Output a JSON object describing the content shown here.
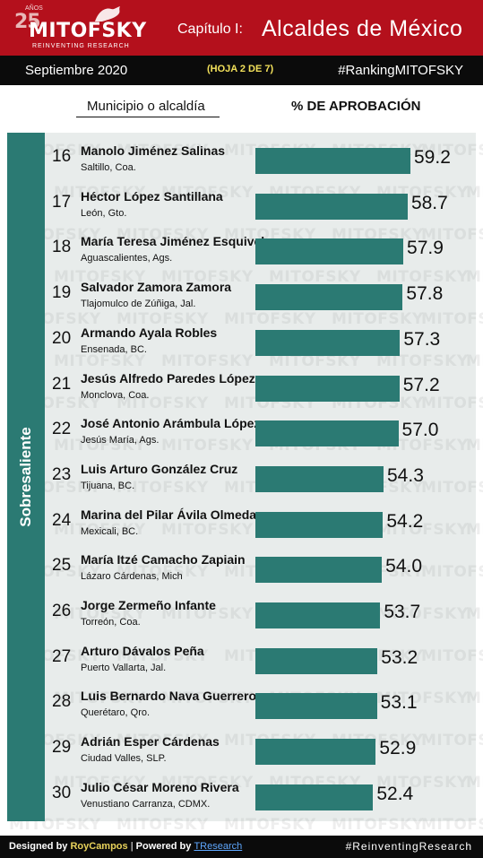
{
  "header": {
    "logo_years": "25",
    "logo_years_caption": "AÑOS",
    "brand": "MITOFSKY",
    "tagline": "REINVENTING RESEARCH",
    "chapter": "Capítulo I:",
    "title": "Alcaldes de México"
  },
  "subheader": {
    "date": "Septiembre 2020",
    "sheet": "(HOJA 2 DE 7)",
    "hashtag": "#RankingMITOFSKY"
  },
  "columns": {
    "municipality": "Municipio o alcaldía",
    "approval": "% DE APROBACIÓN"
  },
  "category": "Sobresaliente",
  "watermark": "MITOFSKY",
  "colors": {
    "brand_red": "#b4101c",
    "bar_teal": "#2b7a73",
    "panel_bg": "#e8eceb"
  },
  "chart_data": {
    "type": "bar",
    "orientation": "horizontal",
    "title": "Alcaldes de México",
    "value_label": "% DE APROBACIÓN",
    "rows": [
      {
        "rank": "16",
        "name": "Manolo Jiménez Salinas",
        "place": "Saltillo, Coa.",
        "value": 59.2,
        "label": "59.2"
      },
      {
        "rank": "17",
        "name": "Héctor López Santillana",
        "place": "León, Gto.",
        "value": 58.7,
        "label": "58.7"
      },
      {
        "rank": "18",
        "name": "María Teresa Jiménez Esquivel",
        "place": "Aguascalientes, Ags.",
        "value": 57.9,
        "label": "57.9"
      },
      {
        "rank": "19",
        "name": "Salvador Zamora Zamora",
        "place": "Tlajomulco de Zúñiga, Jal.",
        "value": 57.8,
        "label": "57.8"
      },
      {
        "rank": "20",
        "name": "Armando Ayala Robles",
        "place": "Ensenada, BC.",
        "value": 57.3,
        "label": "57.3"
      },
      {
        "rank": "21",
        "name": "Jesús Alfredo Paredes López",
        "place": "Monclova, Coa.",
        "value": 57.2,
        "label": "57.2"
      },
      {
        "rank": "22",
        "name": "José Antonio Arámbula López",
        "place": "Jesús María, Ags.",
        "value": 57.0,
        "label": "57.0"
      },
      {
        "rank": "23",
        "name": "Luis Arturo González Cruz",
        "place": "Tijuana, BC.",
        "value": 54.3,
        "label": "54.3"
      },
      {
        "rank": "24",
        "name": "Marina del Pilar Ávila Olmeda",
        "place": "Mexicali, BC.",
        "value": 54.2,
        "label": "54.2"
      },
      {
        "rank": "25",
        "name": "María Itzé Camacho Zapiain",
        "place": "Lázaro Cárdenas, Mich",
        "value": 54.0,
        "label": "54.0"
      },
      {
        "rank": "26",
        "name": "Jorge Zermeño Infante",
        "place": "Torreón, Coa.",
        "value": 53.7,
        "label": "53.7"
      },
      {
        "rank": "27",
        "name": "Arturo Dávalos Peña",
        "place": "Puerto Vallarta, Jal.",
        "value": 53.2,
        "label": "53.2"
      },
      {
        "rank": "28",
        "name": "Luis Bernardo Nava Guerrero",
        "place": "Querétaro, Qro.",
        "value": 53.1,
        "label": "53.1"
      },
      {
        "rank": "29",
        "name": "Adrián Esper Cárdenas",
        "place": "Ciudad Valles, SLP.",
        "value": 52.9,
        "label": "52.9"
      },
      {
        "rank": "30",
        "name": "Julio César Moreno Rivera",
        "place": "Venustiano Carranza, CDMX.",
        "value": 52.4,
        "label": "52.4"
      }
    ]
  },
  "footer": {
    "designed_prefix": "Designed by ",
    "designer": "RoyCampos",
    "separator": " | ",
    "powered_prefix": "Powered by ",
    "powered_by": "TResearch",
    "hashtag": "#ReinventingResearch"
  }
}
